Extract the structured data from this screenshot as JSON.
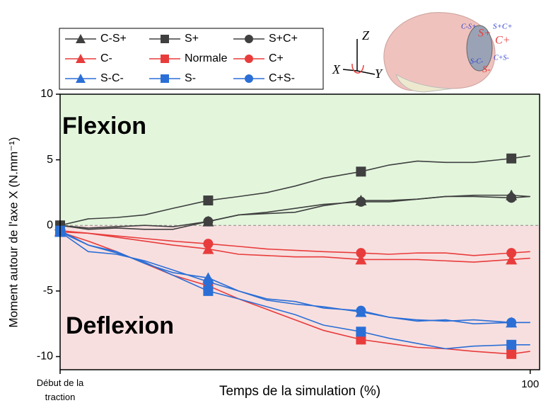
{
  "chart_data": {
    "type": "line",
    "y_label": "Moment autour de l'axe X (N.mm⁻¹)",
    "x_label": "Temps de la simulation (%)",
    "annotations": [
      "Flexion",
      "Deflexion"
    ],
    "x": [
      0,
      6,
      12,
      18,
      24,
      31.5,
      38,
      44,
      50,
      56,
      64,
      70,
      76,
      82,
      88,
      96,
      100
    ],
    "marker_x": [
      0,
      31.5,
      64,
      96
    ],
    "series": [
      {
        "name": "C-S+",
        "color": "#404040",
        "marker": "triangle",
        "values": [
          0,
          -0.3,
          -0.2,
          -0.3,
          -0.3,
          0.3,
          0.8,
          0.9,
          1.0,
          1.5,
          1.9,
          1.9,
          2.0,
          2.2,
          2.3,
          2.3,
          2.2
        ]
      },
      {
        "name": "S+",
        "color": "#404040",
        "marker": "square",
        "values": [
          0,
          0.5,
          0.6,
          0.8,
          1.3,
          1.9,
          2.2,
          2.5,
          3.0,
          3.6,
          4.1,
          4.6,
          4.9,
          4.8,
          4.8,
          5.1,
          5.3
        ]
      },
      {
        "name": "S+C+",
        "color": "#404040",
        "marker": "circle",
        "values": [
          0,
          -0.2,
          -0.1,
          0,
          -0.1,
          0.3,
          0.8,
          1.0,
          1.3,
          1.6,
          1.8,
          1.8,
          2.0,
          2.2,
          2.2,
          2.1,
          2.2
        ]
      },
      {
        "name": "C-",
        "color": "#e83c3c",
        "marker": "triangle",
        "values": [
          -0.4,
          -0.6,
          -0.9,
          -1.2,
          -1.5,
          -1.8,
          -2.2,
          -2.3,
          -2.4,
          -2.4,
          -2.6,
          -2.6,
          -2.6,
          -2.7,
          -2.8,
          -2.6,
          -2.5
        ]
      },
      {
        "name": "Normale",
        "color": "#e83c3c",
        "marker": "square",
        "values": [
          -0.5,
          -1.2,
          -2.0,
          -2.9,
          -3.8,
          -4.6,
          -5.6,
          -6.4,
          -7.2,
          -8.0,
          -8.7,
          -9.0,
          -9.3,
          -9.4,
          -9.6,
          -9.8,
          -9.6
        ]
      },
      {
        "name": "C+",
        "color": "#e83c3c",
        "marker": "circle",
        "values": [
          -0.5,
          -0.6,
          -0.8,
          -1.0,
          -1.2,
          -1.4,
          -1.6,
          -1.8,
          -1.9,
          -2.0,
          -2.1,
          -2.2,
          -2.1,
          -2.1,
          -2.3,
          -2.1,
          -2.0
        ]
      },
      {
        "name": "S-C-",
        "color": "#2b6fd6",
        "marker": "triangle",
        "values": [
          -0.5,
          -1.5,
          -2.0,
          -2.9,
          -3.6,
          -4.0,
          -5.0,
          -5.7,
          -6.0,
          -6.2,
          -6.6,
          -7.0,
          -7.2,
          -7.3,
          -7.2,
          -7.4,
          -7.4
        ]
      },
      {
        "name": "S-",
        "color": "#2b6fd6",
        "marker": "square",
        "values": [
          -0.4,
          -1.5,
          -2.1,
          -2.8,
          -3.8,
          -5.0,
          -5.6,
          -6.2,
          -6.8,
          -7.6,
          -8.1,
          -8.6,
          -9.0,
          -9.4,
          -9.2,
          -9.1,
          -9.1
        ]
      },
      {
        "name": "C+S-",
        "color": "#2b6fd6",
        "marker": "circle",
        "values": [
          -0.5,
          -2.0,
          -2.2,
          -2.7,
          -3.4,
          -4.3,
          -5.0,
          -5.6,
          -5.8,
          -6.3,
          -6.5,
          -7.0,
          -7.3,
          -7.2,
          -7.5,
          -7.4,
          -7.4
        ]
      }
    ],
    "xlim": [
      0,
      102
    ],
    "ylim": [
      -11,
      10
    ],
    "xticks": [
      {
        "value": 0,
        "label": "Début de la traction"
      },
      100
    ],
    "yticks": [
      10,
      5,
      0,
      -5,
      -10
    ],
    "positive_color": "#e3f6dc",
    "negative_color": "#f8dfdf"
  },
  "figure_inset": {
    "axes": [
      "Z",
      "X",
      "Y"
    ],
    "labels": [
      "S+",
      "C+",
      "S-",
      "C-S+",
      "S+C+",
      "C+S-",
      "S-C-"
    ]
  }
}
